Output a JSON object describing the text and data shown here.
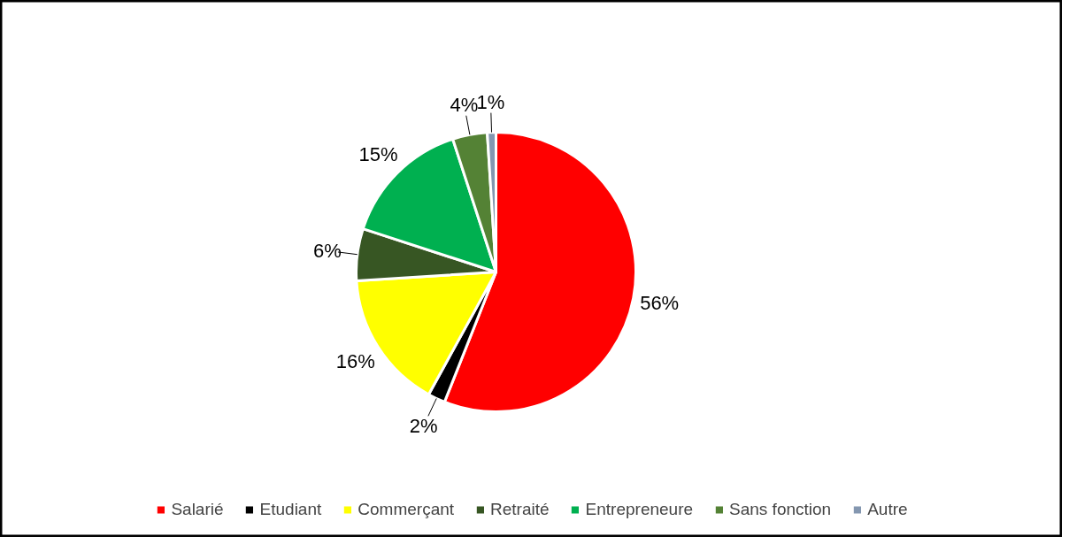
{
  "chart_data": {
    "type": "pie",
    "categories": [
      "Salarié",
      "Etudiant",
      "Commerçant",
      "Retraité",
      "Entrepreneure",
      "Sans fonction",
      "Autre"
    ],
    "values": [
      56,
      2,
      16,
      6,
      15,
      4,
      1
    ],
    "value_labels": [
      "56%",
      "2%",
      "16%",
      "6%",
      "15%",
      "4%",
      "1%"
    ],
    "colors": [
      "#ff0000",
      "#000000",
      "#ffff00",
      "#375623",
      "#00b050",
      "#548235",
      "#8497b0"
    ],
    "legend": "bottom"
  }
}
